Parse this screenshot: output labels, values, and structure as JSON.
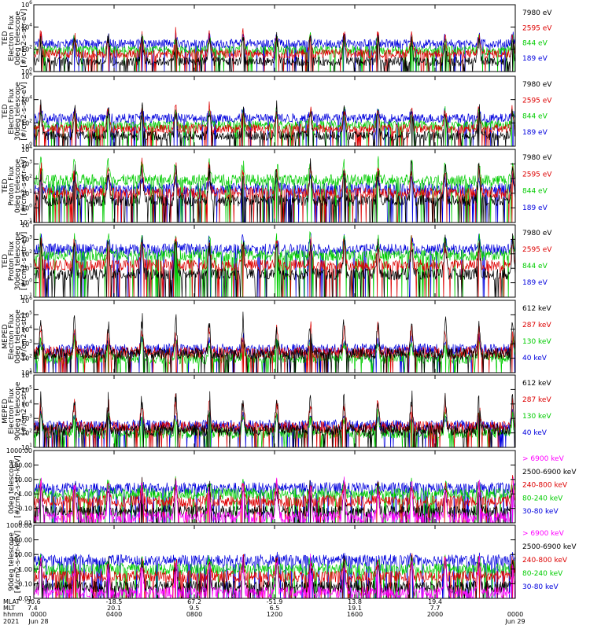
{
  "chart_data": [
    {
      "type": "line",
      "title": "",
      "ylabel_lines": [
        "TED",
        "Electron Flux",
        "0deg telescope",
        "[#/cm2-s-str-eV]"
      ],
      "yscale": "log",
      "ylim": [
        1,
        1000000
      ],
      "yticks": [
        "10^0",
        "10^2",
        "10^4",
        "10^6"
      ],
      "series": [
        {
          "name": "7980 eV",
          "color": "#000000"
        },
        {
          "name": "2595 eV",
          "color": "#dd0000"
        },
        {
          "name": "844 eV",
          "color": "#00cc00"
        },
        {
          "name": "189 eV",
          "color": "#0000dd"
        }
      ],
      "baseline_log": {
        "7980 eV": 0.9,
        "2595 eV": 1.6,
        "844 eV": 1.9,
        "189 eV": 2.5
      }
    },
    {
      "type": "line",
      "title": "",
      "ylabel_lines": [
        "TED",
        "Electron Flux",
        "30deg telescope",
        "[#/cm2-s-str-eV]"
      ],
      "yscale": "log",
      "ylim": [
        1,
        1000000
      ],
      "yticks": [
        "10^0",
        "10^2",
        "10^4",
        "10^6"
      ],
      "series": [
        {
          "name": "7980 eV",
          "color": "#000000"
        },
        {
          "name": "2595 eV",
          "color": "#dd0000"
        },
        {
          "name": "844 eV",
          "color": "#00cc00"
        },
        {
          "name": "189 eV",
          "color": "#0000dd"
        }
      ],
      "baseline_log": {
        "7980 eV": 0.9,
        "2595 eV": 1.5,
        "844 eV": 1.8,
        "189 eV": 2.4
      }
    },
    {
      "type": "line",
      "title": "",
      "ylabel_lines": [
        "TED",
        "Proton Flux",
        "0deg telescope",
        "[#/cm2-s-str-eV]"
      ],
      "yscale": "log",
      "ylim": [
        0.1,
        10000
      ],
      "yticks": [
        "10^-1",
        "10^0",
        "10^1",
        "10^2",
        "10^3",
        "10^4"
      ],
      "series": [
        {
          "name": "7980 eV",
          "color": "#000000"
        },
        {
          "name": "2595 eV",
          "color": "#dd0000"
        },
        {
          "name": "844 eV",
          "color": "#00cc00"
        },
        {
          "name": "189 eV",
          "color": "#0000dd"
        }
      ],
      "baseline_log": {
        "7980 eV": 0.5,
        "2595 eV": 1.0,
        "844 eV": 1.9,
        "189 eV": 1.3
      }
    },
    {
      "type": "line",
      "title": "",
      "ylabel_lines": [
        "TED",
        "Proton Flux",
        "30deg telescope",
        "[#/cm2-s-str-eV]"
      ],
      "yscale": "log",
      "ylim": [
        0.1,
        10000
      ],
      "yticks": [
        "10^-1",
        "10^0",
        "10^1",
        "10^2",
        "10^3",
        "10^4"
      ],
      "series": [
        {
          "name": "7980 eV",
          "color": "#000000"
        },
        {
          "name": "2595 eV",
          "color": "#dd0000"
        },
        {
          "name": "844 eV",
          "color": "#00cc00"
        },
        {
          "name": "189 eV",
          "color": "#0000dd"
        }
      ],
      "baseline_log": {
        "7980 eV": 0.6,
        "2595 eV": 1.2,
        "844 eV": 1.9,
        "189 eV": 2.3
      }
    },
    {
      "type": "line",
      "title": "",
      "ylabel_lines": [
        "MEPED",
        "Electron Flux",
        "0deg telescope",
        "[#/cm2-s-str]"
      ],
      "yscale": "log",
      "ylim": [
        10,
        1000000
      ],
      "yticks": [
        "10^1",
        "10^2",
        "10^3",
        "10^4",
        "10^5",
        "10^6"
      ],
      "series": [
        {
          "name": "612 keV",
          "color": "#000000"
        },
        {
          "name": "287 keV",
          "color": "#dd0000"
        },
        {
          "name": "130 keV",
          "color": "#00cc00"
        },
        {
          "name": "40 keV",
          "color": "#0000dd"
        }
      ],
      "baseline_log": {
        "612 keV": 2.3,
        "287 keV": 2.4,
        "130 keV": 2.0,
        "40 keV": 2.6
      }
    },
    {
      "type": "line",
      "title": "",
      "ylabel_lines": [
        "MEPED",
        "Electron Flux",
        "90deg telescope",
        "[#/cm2-s-str]"
      ],
      "yscale": "log",
      "ylim": [
        10,
        1000000
      ],
      "yticks": [
        "10^1",
        "10^2",
        "10^3",
        "10^4",
        "10^5",
        "10^6"
      ],
      "series": [
        {
          "name": "612 keV",
          "color": "#000000"
        },
        {
          "name": "287 keV",
          "color": "#dd0000"
        },
        {
          "name": "130 keV",
          "color": "#00cc00"
        },
        {
          "name": "40 keV",
          "color": "#0000dd"
        }
      ],
      "baseline_log": {
        "612 keV": 2.2,
        "287 keV": 2.4,
        "130 keV": 2.0,
        "40 keV": 2.5
      }
    },
    {
      "type": "line",
      "title": "",
      "ylabel_lines": [
        "0deg telescope",
        "[#/cm2-s-str-keV]"
      ],
      "yscale": "log",
      "ylim": [
        0.01,
        1000
      ],
      "yticks": [
        "0.01",
        "0.10",
        "1.00",
        "10.00",
        "100.00",
        "1000.00"
      ],
      "series": [
        {
          "name": "> 6900 keV",
          "color": "#ff00ff"
        },
        {
          "name": "2500-6900 keV",
          "color": "#000000"
        },
        {
          "name": "240-800 keV",
          "color": "#dd0000"
        },
        {
          "name": "80-240 keV",
          "color": "#00cc00"
        },
        {
          "name": "30-80 keV",
          "color": "#0000dd"
        }
      ],
      "baseline_log": {
        "> 6900 keV": -1.6,
        "2500-6900 keV": -1.2,
        "240-800 keV": -0.5,
        "80-240 keV": 0.0,
        "30-80 keV": 0.4
      }
    },
    {
      "type": "line",
      "title": "",
      "ylabel_lines": [
        "90deg telescope",
        "[#/cm2-s-str-keV]"
      ],
      "yscale": "log",
      "ylim": [
        0.01,
        1000
      ],
      "yticks": [
        "0.01",
        "0.10",
        "1.00",
        "10.00",
        "100.00",
        "1000.00"
      ],
      "series": [
        {
          "name": "> 6900 keV",
          "color": "#ff00ff"
        },
        {
          "name": "2500-6900 keV",
          "color": "#000000"
        },
        {
          "name": "240-800 keV",
          "color": "#dd0000"
        },
        {
          "name": "80-240 keV",
          "color": "#00cc00"
        },
        {
          "name": "30-80 keV",
          "color": "#0000dd"
        }
      ],
      "baseline_log": {
        "> 6900 keV": -1.6,
        "2500-6900 keV": -1.2,
        "240-800 keV": -0.5,
        "80-240 keV": 0.0,
        "30-80 keV": 0.6
      }
    }
  ],
  "x_axis": {
    "row_labels": [
      "MLAT",
      "MLT",
      "hhmm",
      "2021"
    ],
    "ticks": [
      {
        "time_hours": 0,
        "mlat": "-30.6",
        "mlt": "7.4",
        "hhmm": "0000",
        "date": "Jun 28"
      },
      {
        "time_hours": 4,
        "mlat": "-18.5",
        "mlt": "20.1",
        "hhmm": "0400",
        "date": ""
      },
      {
        "time_hours": 8,
        "mlat": "67.2",
        "mlt": "9.5",
        "hhmm": "0800",
        "date": ""
      },
      {
        "time_hours": 12,
        "mlat": "-51.9",
        "mlt": "6.5",
        "hhmm": "1200",
        "date": ""
      },
      {
        "time_hours": 16,
        "mlat": "13.8",
        "mlt": "19.1",
        "hhmm": "1600",
        "date": ""
      },
      {
        "time_hours": 20,
        "mlat": "19.4",
        "mlt": "7.7",
        "hhmm": "2000",
        "date": ""
      },
      {
        "time_hours": 24,
        "mlat": "",
        "mlt": "",
        "hhmm": "0000",
        "date": "Jun 29"
      }
    ],
    "range_hours": [
      0,
      24
    ]
  }
}
